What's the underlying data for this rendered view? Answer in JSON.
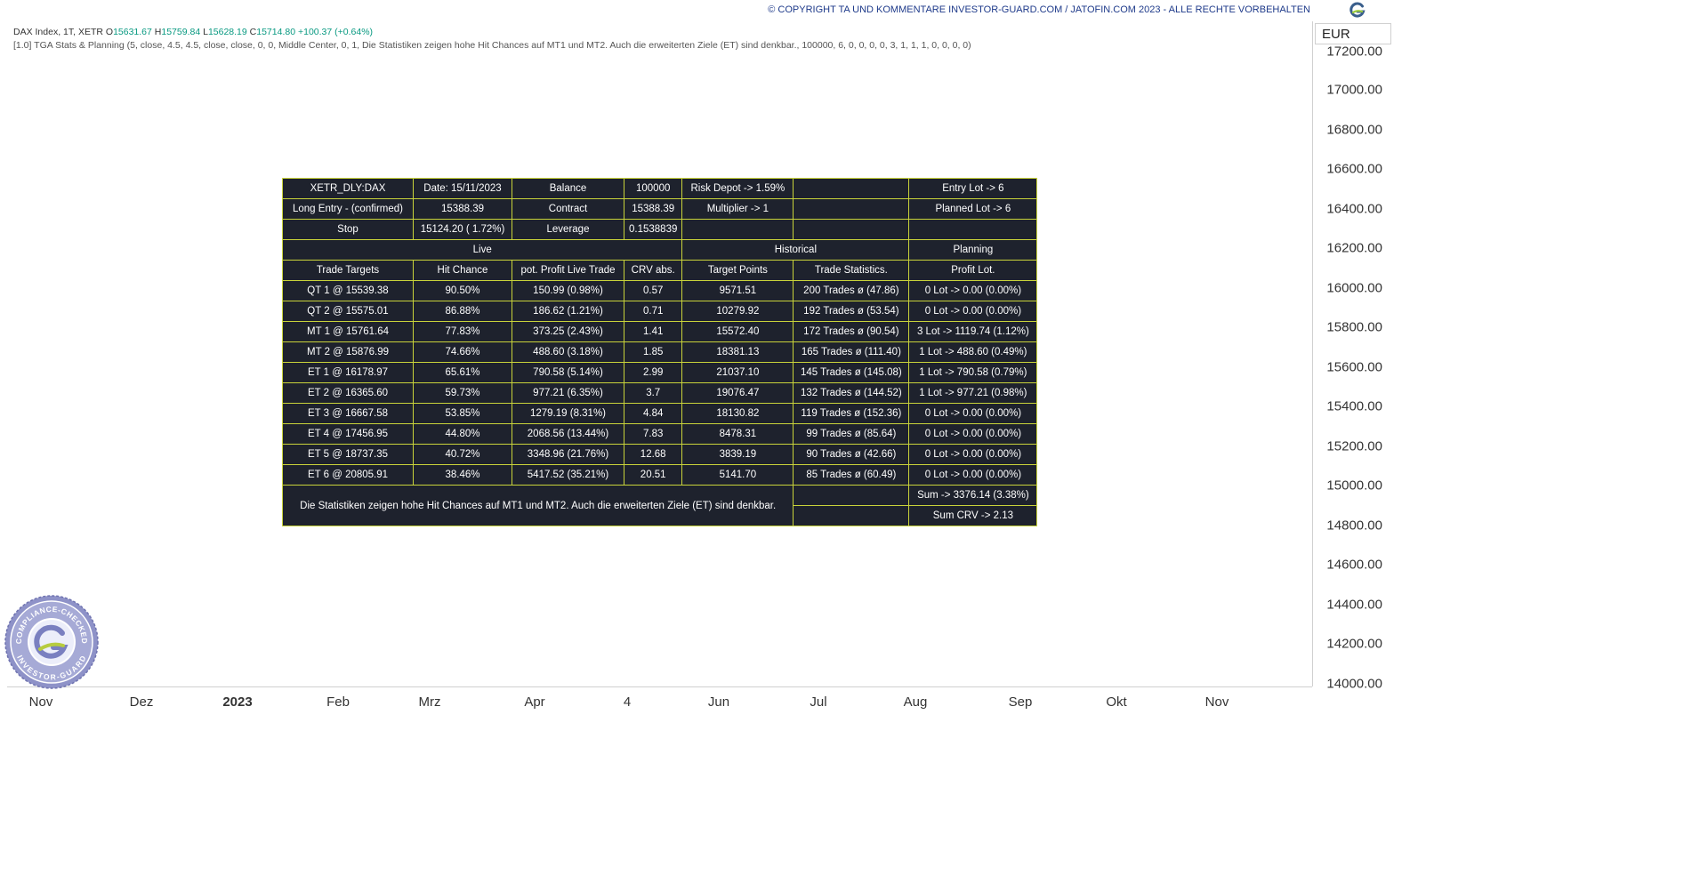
{
  "header": {
    "copyright": "© COPYRIGHT TA UND KOMMENTARE INVESTOR-GUARD.COM / JATOFIN.COM 2023 - ALLE RECHTE VORBEHALTEN"
  },
  "legend": {
    "symbol": "DAX Index, 1T, XETR",
    "o_label": "O",
    "o": "15631.67",
    "h_label": "H",
    "h": "15759.84",
    "l_label": "L",
    "l": "15628.19",
    "c_label": "C",
    "c": "15714.80",
    "change": "+100.37 (+0.64%)",
    "indicator": "[1.0] TGA Stats & Planning (5, close, 4.5, 4.5, close, close, 0, 0, Middle Center, 0, 1, Die Statistiken zeigen hohe Hit Chances auf MT1 und MT2. Auch die erweiterten Ziele (ET) sind denkbar., 100000, 6, 0, 0, 0, 0, 3, 1, 1, 1, 0, 0, 0, 0)"
  },
  "price_axis": {
    "currency": "EUR",
    "ticks": [
      "17200.00",
      "17000.00",
      "16800.00",
      "16600.00",
      "16400.00",
      "16200.00",
      "16000.00",
      "15800.00",
      "15600.00",
      "15400.00",
      "15200.00",
      "15000.00",
      "14800.00",
      "14600.00",
      "14400.00",
      "14200.00",
      "14000.00"
    ]
  },
  "time_axis": {
    "ticks": [
      "Nov",
      "Dez",
      "2023",
      "Feb",
      "Mrz",
      "Apr",
      "4",
      "Jun",
      "Jul",
      "Aug",
      "Sep",
      "Okt",
      "Nov"
    ]
  },
  "table": {
    "r0": [
      "XETR_DLY:DAX",
      "Date: 15/11/2023",
      "Balance",
      "100000",
      "Risk Depot -> 1.59%",
      "",
      "Entry Lot -> 6"
    ],
    "r1": [
      "Long Entry - (confirmed)",
      "15388.39",
      "Contract",
      "15388.39",
      "Multiplier -> 1",
      "",
      "Planned Lot -> 6"
    ],
    "r2": [
      "Stop",
      "15124.20 ( 1.72%)",
      "Leverage",
      "0.1538839",
      "",
      "",
      ""
    ],
    "sections": {
      "live": "Live",
      "historical": "Historical",
      "planning": "Planning"
    },
    "headers": [
      "Trade Targets",
      "Hit Chance",
      "pot. Profit Live Trade",
      "CRV abs.",
      "Target Points",
      "Trade Statistics.",
      "Profit Lot."
    ],
    "rows": [
      [
        "QT 1 @ 15539.38",
        "90.50%",
        "150.99 (0.98%)",
        "0.57",
        "9571.51",
        "200 Trades ø (47.86)",
        "0 Lot -> 0.00 (0.00%)"
      ],
      [
        "QT 2 @ 15575.01",
        "86.88%",
        "186.62 (1.21%)",
        "0.71",
        "10279.92",
        "192 Trades ø (53.54)",
        "0 Lot -> 0.00 (0.00%)"
      ],
      [
        "MT 1 @ 15761.64",
        "77.83%",
        "373.25 (2.43%)",
        "1.41",
        "15572.40",
        "172 Trades ø (90.54)",
        "3 Lot -> 1119.74 (1.12%)"
      ],
      [
        "MT 2 @ 15876.99",
        "74.66%",
        "488.60 (3.18%)",
        "1.85",
        "18381.13",
        "165 Trades ø (111.40)",
        "1 Lot -> 488.60 (0.49%)"
      ],
      [
        "ET 1 @ 16178.97",
        "65.61%",
        "790.58 (5.14%)",
        "2.99",
        "21037.10",
        "145 Trades ø (145.08)",
        "1 Lot -> 790.58 (0.79%)"
      ],
      [
        "ET 2 @ 16365.60",
        "59.73%",
        "977.21 (6.35%)",
        "3.7",
        "19076.47",
        "132 Trades ø (144.52)",
        "1 Lot -> 977.21 (0.98%)"
      ],
      [
        "ET 3 @ 16667.58",
        "53.85%",
        "1279.19 (8.31%)",
        "4.84",
        "18130.82",
        "119 Trades ø (152.36)",
        "0 Lot -> 0.00 (0.00%)"
      ],
      [
        "ET 4 @ 17456.95",
        "44.80%",
        "2068.56 (13.44%)",
        "7.83",
        "8478.31",
        "99 Trades ø (85.64)",
        "0 Lot -> 0.00 (0.00%)"
      ],
      [
        "ET 5 @ 18737.35",
        "40.72%",
        "3348.96 (21.76%)",
        "12.68",
        "3839.19",
        "90 Trades ø (42.66)",
        "0 Lot -> 0.00 (0.00%)"
      ],
      [
        "ET 6 @ 20805.91",
        "38.46%",
        "5417.52 (35.21%)",
        "20.51",
        "5141.70",
        "85 Trades ø (60.49)",
        "0 Lot -> 0.00 (0.00%)"
      ]
    ],
    "comment": "Die Statistiken zeigen hohe Hit Chances auf MT1 und MT2. Auch die erweiterten Ziele (ET) sind denkbar.",
    "sum": "Sum -> 3376.14 (3.38%)",
    "sum_crv": "Sum CRV -> 2.13"
  },
  "badge": {
    "top_text": "COMPLIANCE-CHECKED",
    "bottom_text": "INVESTOR-GUARD"
  },
  "icons": {
    "brand": "brand-g-logo-icon",
    "badge": "compliance-badge-icon"
  }
}
